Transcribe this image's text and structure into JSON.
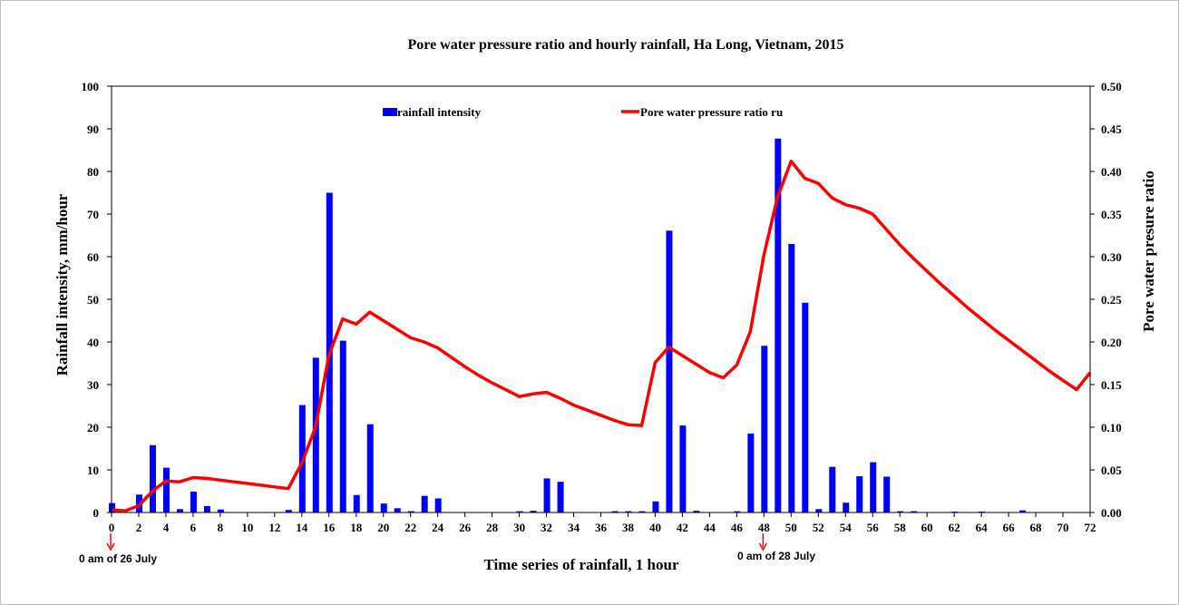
{
  "chart_data": {
    "type": "bar+line",
    "title": "Pore water pressure ratio and hourly rainfall, Ha Long, Vietnam, 2015",
    "xlabel": "Time  series of rainfall, 1 hour",
    "ylabel": "Rainfall intensity, mm/hour",
    "y2label": "Pore water presure ratio",
    "xlim": [
      0,
      72
    ],
    "ylim": [
      0,
      100
    ],
    "y2lim": [
      0,
      0.5
    ],
    "x_ticks": [
      "0",
      "2",
      "4",
      "6",
      "8",
      "10",
      "12",
      "14",
      "16",
      "18",
      "20",
      "22",
      "24",
      "26",
      "28",
      "30",
      "32",
      "34",
      "36",
      "38",
      "40",
      "42",
      "44",
      "46",
      "48",
      "50",
      "52",
      "54",
      "56",
      "58",
      "60",
      "62",
      "64",
      "66",
      "68",
      "70",
      "72"
    ],
    "y_ticks": [
      "0",
      "10",
      "20",
      "30",
      "40",
      "50",
      "60",
      "70",
      "80",
      "90",
      "100"
    ],
    "y2_ticks": [
      "0.00",
      "0.05",
      "0.10",
      "0.15",
      "0.20",
      "0.25",
      "0.30",
      "0.35",
      "0.40",
      "0.45",
      "0.50"
    ],
    "legend_placement": "top-center",
    "grid": false,
    "series": [
      {
        "name": "rainfall intensity",
        "type": "bar",
        "axis": "left",
        "color": "#0000ff",
        "x": [
          0,
          2,
          3,
          4,
          5,
          6,
          7,
          8,
          13,
          14,
          15,
          16,
          17,
          18,
          19,
          20,
          21,
          22,
          23,
          24,
          30,
          31,
          32,
          33,
          37,
          38,
          39,
          40,
          41,
          42,
          43,
          46,
          47,
          48,
          49,
          50,
          51,
          52,
          53,
          54,
          55,
          56,
          57,
          58,
          59,
          62,
          64,
          67
        ],
        "values": [
          2.2,
          4.2,
          15.8,
          10.5,
          0.8,
          4.9,
          1.5,
          0.7,
          0.6,
          25.2,
          36.3,
          75.0,
          40.3,
          4.1,
          20.7,
          2.1,
          1.0,
          0.3,
          3.9,
          3.3,
          0.3,
          0.4,
          8.0,
          7.2,
          0.3,
          0.3,
          0.3,
          2.6,
          66.1,
          20.4,
          0.4,
          0.3,
          18.5,
          39.1,
          87.7,
          63.0,
          49.2,
          0.8,
          10.7,
          2.3,
          8.5,
          11.8,
          8.4,
          0.3,
          0.3,
          0.2,
          0.2,
          0.5
        ]
      },
      {
        "name": "Pore water pressure ratio ru",
        "type": "line",
        "axis": "right",
        "color": "#ff0000",
        "x": [
          0,
          1,
          2,
          3,
          4,
          5,
          6,
          7,
          8,
          9,
          10,
          11,
          12,
          13,
          14,
          15,
          16,
          17,
          18,
          19,
          20,
          21,
          22,
          23,
          24,
          25,
          26,
          27,
          28,
          29,
          30,
          31,
          32,
          33,
          34,
          35,
          36,
          37,
          38,
          39,
          40,
          41,
          42,
          43,
          44,
          45,
          46,
          47,
          48,
          49,
          50,
          51,
          52,
          53,
          54,
          55,
          56,
          57,
          58,
          59,
          60,
          61,
          62,
          63,
          64,
          65,
          66,
          67,
          68,
          69,
          70,
          71,
          72
        ],
        "values": [
          0.003,
          0.002,
          0.008,
          0.025,
          0.037,
          0.036,
          0.041,
          0.04,
          0.038,
          0.036,
          0.034,
          0.032,
          0.03,
          0.028,
          0.058,
          0.1,
          0.185,
          0.227,
          0.221,
          0.235,
          0.225,
          0.215,
          0.205,
          0.2,
          0.193,
          0.182,
          0.171,
          0.161,
          0.152,
          0.144,
          0.136,
          0.139,
          0.141,
          0.134,
          0.126,
          0.12,
          0.114,
          0.108,
          0.103,
          0.102,
          0.176,
          0.194,
          0.184,
          0.174,
          0.164,
          0.158,
          0.173,
          0.212,
          0.302,
          0.37,
          0.412,
          0.392,
          0.386,
          0.369,
          0.361,
          0.357,
          0.35,
          0.332,
          0.314,
          0.298,
          0.283,
          0.268,
          0.254,
          0.24,
          0.227,
          0.214,
          0.202,
          0.19,
          0.178,
          0.166,
          0.155,
          0.144,
          0.164
        ]
      }
    ],
    "annotations": [
      {
        "text": "0 am of 26 July",
        "x": 0
      },
      {
        "text": "0 am of 28 July",
        "x": 48
      }
    ]
  }
}
